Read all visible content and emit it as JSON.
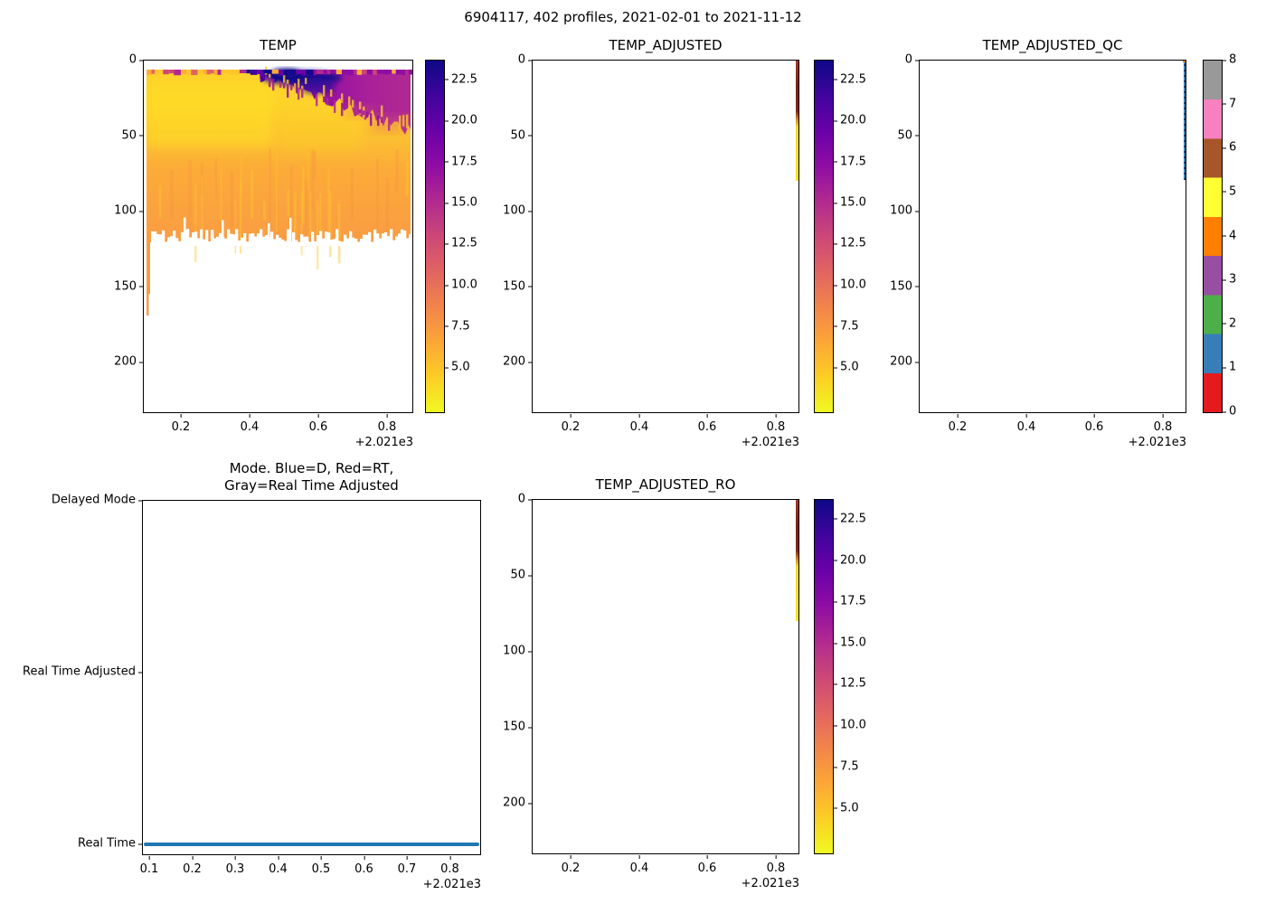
{
  "figure": {
    "suptitle": "6904117, 402 profiles, 2021-02-01 to 2021-11-12",
    "background": "#ffffff"
  },
  "axes_shared": {
    "depth_yticks": [
      "0",
      "50",
      "100",
      "150",
      "200"
    ],
    "time_xticks": [
      "0.2",
      "0.4",
      "0.6",
      "0.8"
    ],
    "mode_xticks": [
      "0.1",
      "0.2",
      "0.3",
      "0.4",
      "0.5",
      "0.6",
      "0.7",
      "0.8"
    ],
    "x_offset_label": "+2.021e3"
  },
  "panels": {
    "temp": {
      "title": "TEMP"
    },
    "temp_adjusted": {
      "title": "TEMP_ADJUSTED"
    },
    "temp_adjusted_qc": {
      "title": "TEMP_ADJUSTED_QC"
    },
    "mode": {
      "title_line1": "Mode. Blue=D, Red=RT,",
      "title_line2": "Gray=Real Time Adjusted",
      "yticks": [
        "Delayed Mode",
        "Real Time Adjusted",
        "Real Time"
      ]
    },
    "temp_adjusted_ro": {
      "title": "TEMP_ADJUSTED_RO"
    }
  },
  "colorbars": {
    "temp_ticks": [
      "22.5",
      "20.0",
      "17.5",
      "15.0",
      "12.5",
      "10.0",
      "7.5",
      "5.0"
    ],
    "qc_ticks": [
      "8",
      "7",
      "6",
      "5",
      "4",
      "3",
      "2",
      "1",
      "0"
    ],
    "plasma_r_stops": [
      "#0d0887",
      "#41049d",
      "#6a00a8",
      "#8f0da4",
      "#b12a90",
      "#cc4778",
      "#e16462",
      "#f2844b",
      "#fca636",
      "#fcce25",
      "#f0f921"
    ],
    "qc_palette_top_to_bottom": [
      "#999999",
      "#f781bf",
      "#a65628",
      "#ffff33",
      "#ff7f00",
      "#984ea3",
      "#4daf4a",
      "#377eb8",
      "#e41a1c"
    ]
  },
  "colors": {
    "mode_line": "#1f77b4",
    "adjusted_strip": {
      "top": "#a33a20",
      "upper": "#7f1e12",
      "upper2": "#8c2312",
      "mid": "#ce7a1e",
      "lower": "#f0d823",
      "bottom": "#f4e426"
    },
    "qc_strip": {
      "base": "#377eb8",
      "dash": "#24405f",
      "top_mark": "#ff7f00"
    },
    "temp_map": {
      "yellow": "#fdd22b",
      "yellow2": "#fdc62c",
      "orange": "#fcab38",
      "orange_deep": "#f99c44",
      "salmon": "#e16462",
      "magenta": "#b12a90",
      "purple": "#8f0da4",
      "purple_deep": "#6a00a8",
      "navy": "#16078c",
      "navy_deep": "#0d0887"
    }
  },
  "chart_data": [
    {
      "panel": "TEMP",
      "type": "heatmap",
      "x_axis": "time (year; tick labels 0.2–0.8 with offset +2.021e3)",
      "x_range": [
        2021.09,
        2021.87
      ],
      "y_axis": "depth (m, surface at top)",
      "y_range": [
        0,
        237
      ],
      "xticks": [
        2021.2,
        2021.4,
        2021.6,
        2021.8
      ],
      "yticks": [
        0,
        50,
        100,
        150,
        200
      ],
      "colormap": "plasma reversed (yellow=cold, dark navy=warm)",
      "color_limits": [
        2.3,
        23.7
      ],
      "colorbar_ticks": [
        22.5,
        20.0,
        17.5,
        15.0,
        12.5,
        10.0,
        7.5,
        5.0
      ],
      "data_coverage": "402 profiles spanning full x-range; data from ~6 m to ~120 m with ragged bottom edge; earliest profiles reach ~168 m",
      "pattern": {
        "surface_0_10m": "warms from ~5-8 C (yellow/orange) in Feb to ~22-23 C (dark navy) around Jul-Aug, cooling to ~13-17 C (magenta/purple) by Nov",
        "upper_10_40m": "yellow ~4-6 C Feb-May; warm magenta/purple wedge (~13-20 C) deepens from ~10 m in Jun to ~40 m by Nov with spiky boundary",
        "mid_40_60m": "yellow ~4-5 C",
        "deep_60_120m": "orange ~6-8 C year-round with vertical yellow streaks"
      }
    },
    {
      "panel": "TEMP_ADJUSTED",
      "type": "heatmap",
      "same_axes_as": "TEMP",
      "data_coverage": "only the last profile (~2021.86) has data, 0–80 m (thin strip at right edge)",
      "pattern": "~10-12 C (dark red) from 0 to ~38 m, ~4-5 C (yellow) from ~38 to 80 m"
    },
    {
      "panel": "TEMP_ADJUSTED_QC",
      "type": "heatmap",
      "same_axes_as": "TEMP",
      "colormap": "9-color qualitative (Set1-like), integer QC flags 0-8",
      "colorbar_ticks": [
        8,
        7,
        6,
        5,
        4,
        3,
        2,
        1,
        0
      ],
      "data_coverage": "only the last profile (~2021.86), 0–80 m (thin strip at right edge)",
      "pattern": "QC mostly 1 (blue) along the profile"
    },
    {
      "panel": "Mode",
      "type": "scatter",
      "title": "Mode. Blue=D, Red=RT, Gray=Real Time Adjusted",
      "y_categories": [
        "Real Time",
        "Real Time Adjusted",
        "Delayed Mode"
      ],
      "xticks": [
        2021.1,
        2021.2,
        2021.3,
        2021.4,
        2021.5,
        2021.6,
        2021.7,
        2021.8
      ],
      "series": [
        {
          "name": "profile processing mode",
          "color": "#1f77b4",
          "value": "all 402 profiles at 'Real Time' level, continuous from 2021.09 to 2021.86"
        }
      ]
    },
    {
      "panel": "TEMP_ADJUSTED_RO",
      "type": "heatmap",
      "same_axes_as": "TEMP",
      "data_coverage": "only the last profile (~2021.86), 0–80 m (thin strip at right edge)",
      "pattern": "same as TEMP_ADJUSTED: dark red 0–38 m, yellow 38–80 m"
    }
  ]
}
